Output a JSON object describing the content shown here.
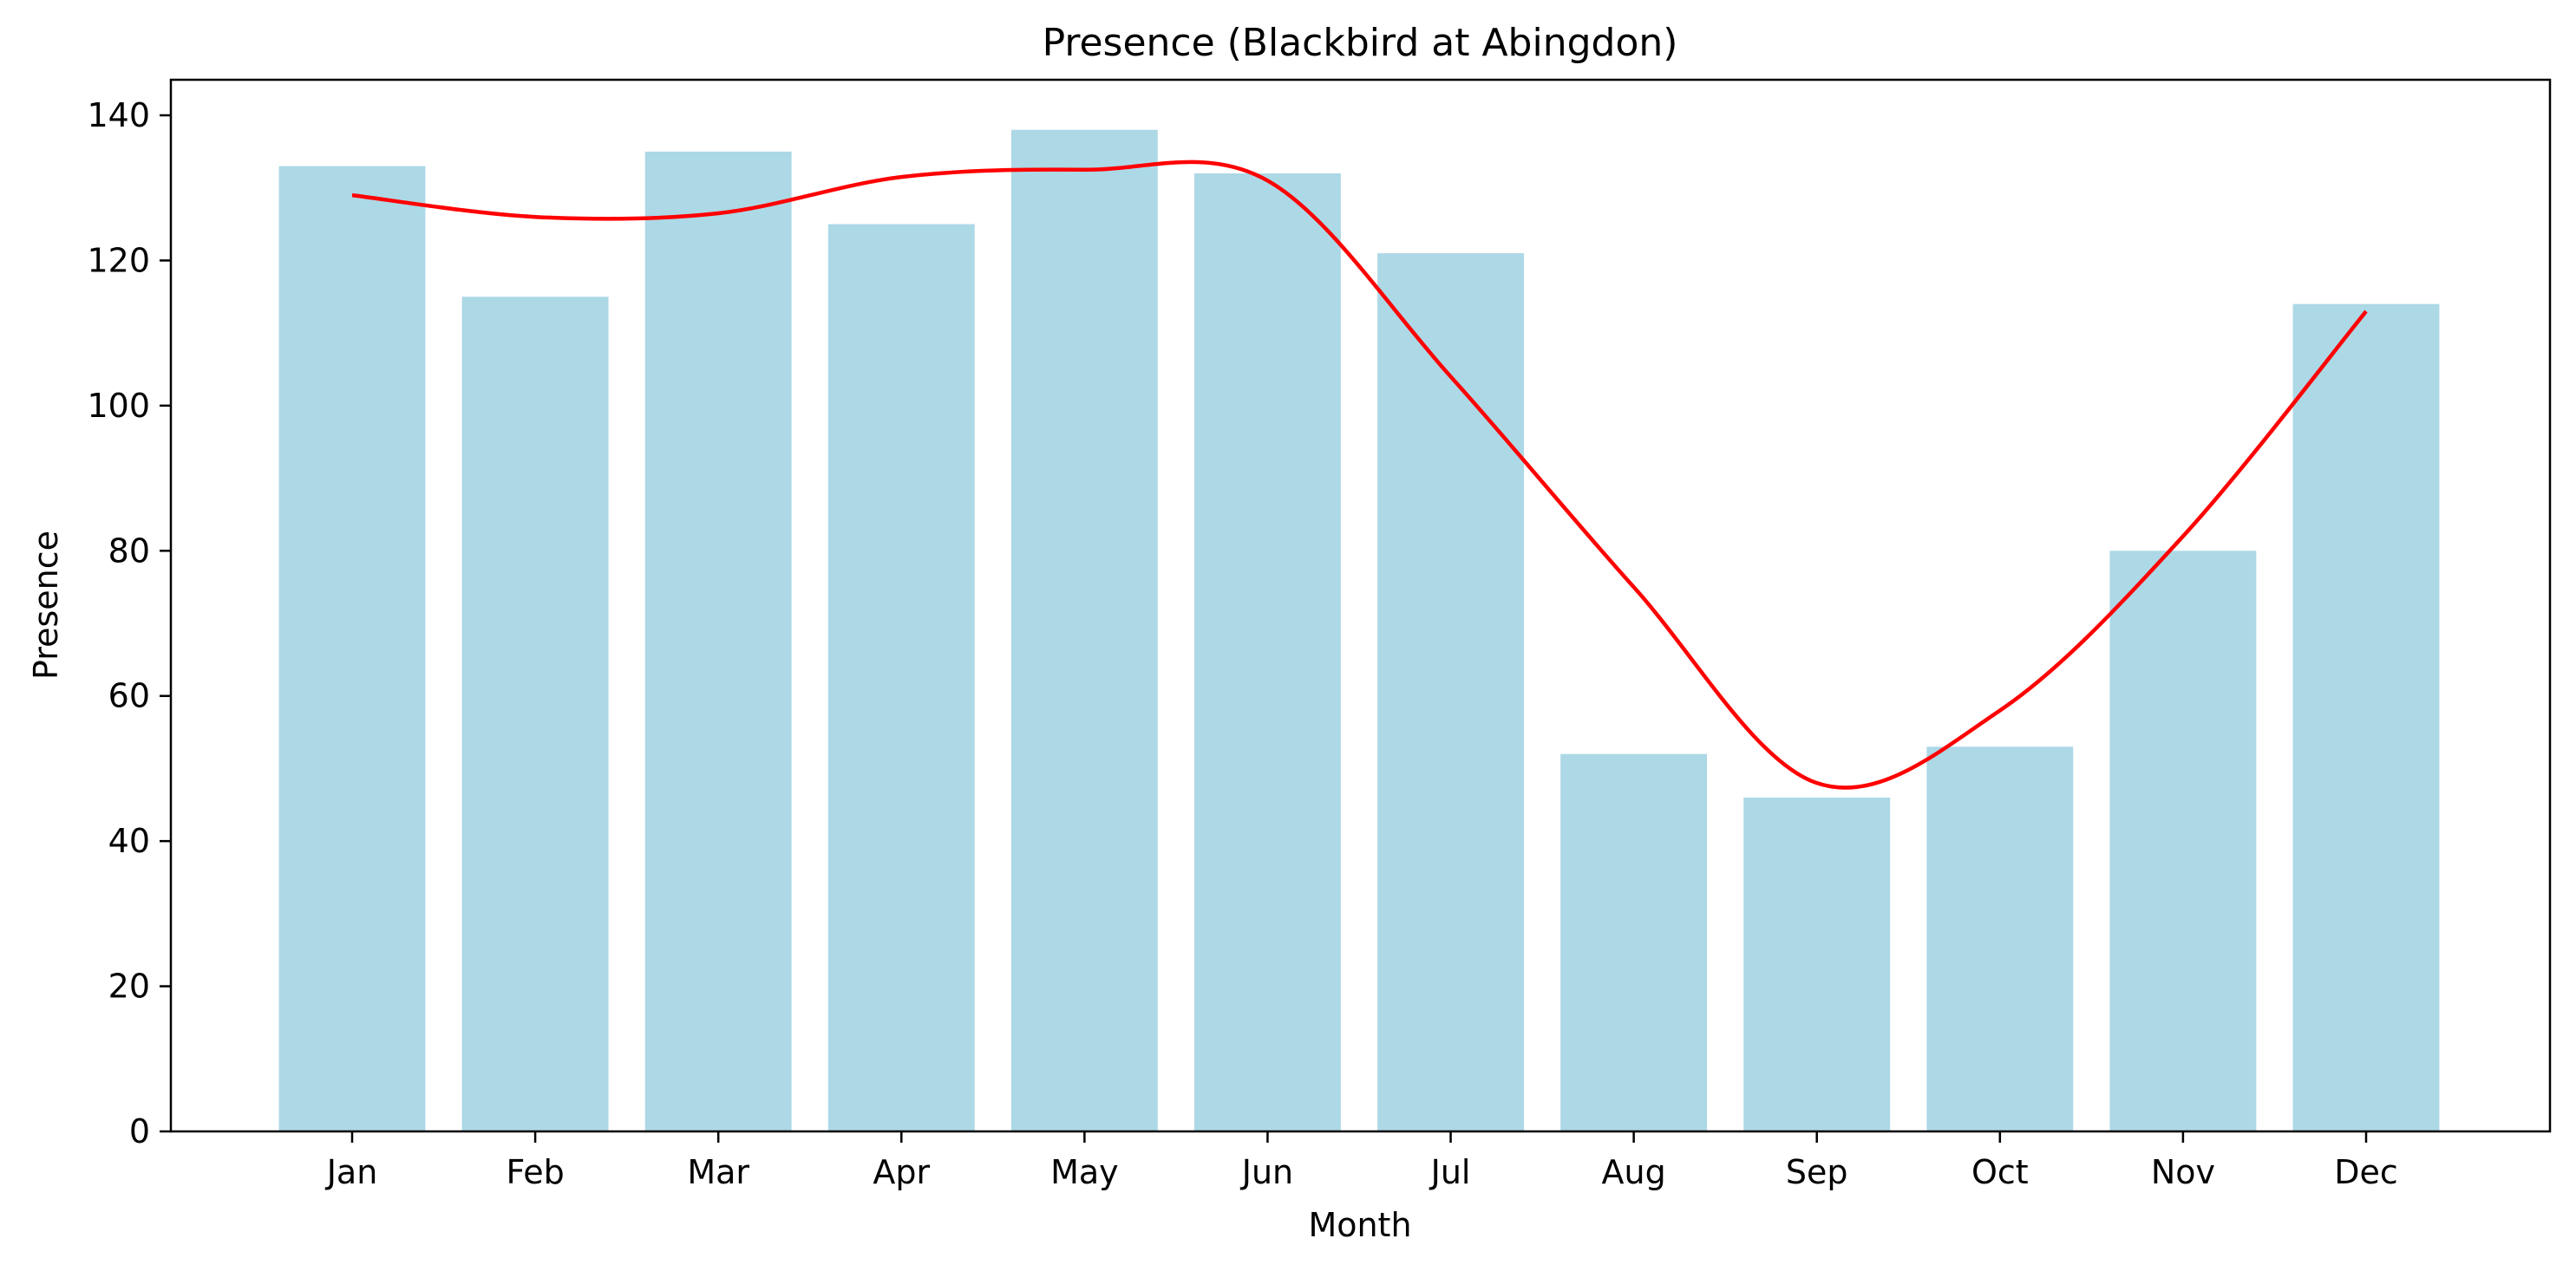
{
  "chart_data": {
    "type": "bar",
    "title": "Presence (Blackbird at Abingdon)",
    "xlabel": "Month",
    "ylabel": "Presence",
    "categories": [
      "Jan",
      "Feb",
      "Mar",
      "Apr",
      "May",
      "Jun",
      "Jul",
      "Aug",
      "Sep",
      "Oct",
      "Nov",
      "Dec"
    ],
    "series": [
      {
        "name": "Presence",
        "type": "bar",
        "values": [
          133,
          115,
          135,
          125,
          138,
          132,
          121,
          52,
          46,
          53,
          80,
          114
        ]
      },
      {
        "name": "Smoothed trend",
        "type": "line",
        "values": [
          129,
          126,
          126.5,
          131.5,
          132.5,
          131,
          104,
          75,
          48,
          58,
          82,
          113
        ]
      }
    ],
    "yticks": [
      0,
      20,
      40,
      60,
      80,
      100,
      120,
      140
    ],
    "ylim": [
      0,
      145
    ],
    "grid": false,
    "colors": {
      "bar": "#add8e6",
      "line": "#ff0000",
      "axis": "#000000"
    }
  }
}
